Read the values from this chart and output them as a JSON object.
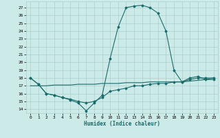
{
  "xlabel": "Humidex (Indice chaleur)",
  "bg_color": "#cceae8",
  "grid_color": "#aacfcc",
  "line_color": "#1a6b6b",
  "xlim": [
    -0.5,
    23.5
  ],
  "ylim": [
    13.5,
    27.8
  ],
  "yticks": [
    14,
    15,
    16,
    17,
    18,
    19,
    20,
    21,
    22,
    23,
    24,
    25,
    26,
    27
  ],
  "xticks": [
    0,
    1,
    2,
    3,
    4,
    5,
    6,
    7,
    8,
    9,
    10,
    11,
    12,
    13,
    14,
    15,
    16,
    17,
    18,
    19,
    20,
    21,
    22,
    23
  ],
  "curve1_x": [
    0,
    1,
    2,
    3,
    4,
    5,
    6,
    7,
    8,
    9,
    10,
    11,
    12,
    13,
    14,
    15,
    16,
    17,
    18,
    19,
    20,
    21,
    22,
    23
  ],
  "curve1_y": [
    18.0,
    17.2,
    16.0,
    15.8,
    15.5,
    15.2,
    14.8,
    13.8,
    14.8,
    15.8,
    20.5,
    24.5,
    27.0,
    27.2,
    27.3,
    27.0,
    26.3,
    24.0,
    19.0,
    17.5,
    18.0,
    18.2,
    17.8,
    17.8
  ],
  "curve2_x": [
    0,
    1,
    2,
    3,
    4,
    5,
    6,
    7,
    8,
    9,
    10,
    11,
    12,
    13,
    14,
    15,
    16,
    17,
    18,
    19,
    20,
    21,
    22,
    23
  ],
  "curve2_y": [
    18.0,
    17.2,
    16.0,
    15.8,
    15.5,
    15.3,
    15.0,
    14.8,
    15.0,
    15.5,
    16.3,
    16.5,
    16.7,
    17.0,
    17.0,
    17.2,
    17.3,
    17.3,
    17.5,
    17.5,
    17.8,
    18.0,
    18.0,
    18.0
  ],
  "curve3_x": [
    0,
    1,
    2,
    3,
    4,
    5,
    6,
    7,
    8,
    9,
    10,
    11,
    12,
    13,
    14,
    15,
    16,
    17,
    18,
    19,
    20,
    21,
    22,
    23
  ],
  "curve3_y": [
    17.0,
    17.0,
    17.0,
    17.1,
    17.1,
    17.1,
    17.2,
    17.2,
    17.2,
    17.3,
    17.3,
    17.3,
    17.4,
    17.4,
    17.4,
    17.5,
    17.5,
    17.5,
    17.5,
    17.5,
    17.6,
    17.7,
    17.8,
    18.0
  ]
}
